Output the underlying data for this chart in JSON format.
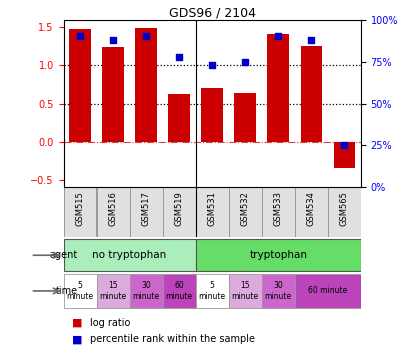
{
  "title": "GDS96 / 2104",
  "samples": [
    "GSM515",
    "GSM516",
    "GSM517",
    "GSM519",
    "GSM531",
    "GSM532",
    "GSM533",
    "GSM534",
    "GSM565"
  ],
  "log_ratio": [
    1.48,
    1.24,
    1.49,
    0.63,
    0.71,
    0.64,
    1.41,
    1.26,
    -0.35
  ],
  "percentile": [
    90,
    88,
    90,
    78,
    73,
    75,
    90,
    88,
    25
  ],
  "bar_color": "#cc0000",
  "dot_color": "#0000cc",
  "ylim_left": [
    -0.6,
    1.6
  ],
  "ylim_right": [
    0,
    100
  ],
  "yticks_left": [
    -0.5,
    0.0,
    0.5,
    1.0,
    1.5
  ],
  "yticks_right": [
    0,
    25,
    50,
    75,
    100
  ],
  "ytick_labels_right": [
    "0%",
    "25%",
    "50%",
    "75%",
    "100%"
  ],
  "agent_color_notrp": "#aaeebb",
  "agent_color_trp": "#66dd66",
  "time_colors": [
    "#ffffff",
    "#ddaadd",
    "#cc66cc",
    "#ffffff",
    "#ddaadd",
    "#cc66cc",
    "#cc44cc"
  ],
  "legend_red": "#cc0000",
  "legend_blue": "#0000cc"
}
